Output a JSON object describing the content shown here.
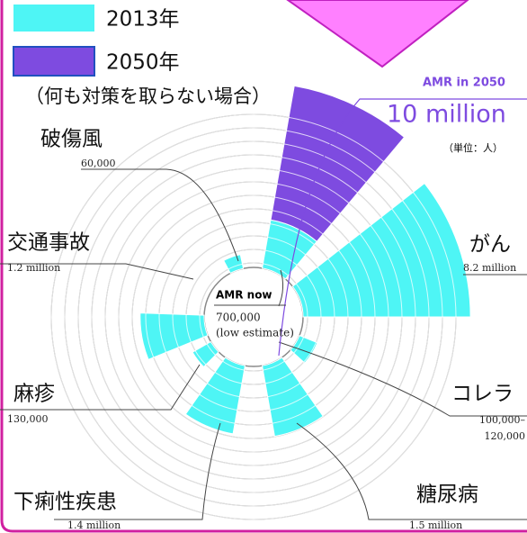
{
  "chart_data": {
    "type": "rose",
    "legend": [
      {
        "name": "2013年",
        "color": "#4ef5f5"
      },
      {
        "name": "2050年",
        "color": "#7e4be0"
      }
    ],
    "subtitle": "（何も対策を取らない場合）",
    "unit_note": "（単位：人）",
    "center_note": "(low estimate)",
    "sectors": [
      {
        "label": "AMR now",
        "value": 700000,
        "value_label": "700,000",
        "series": 0
      },
      {
        "label": "AMR in 2050",
        "value": 10000000,
        "value_label": "10 million",
        "series": 1
      },
      {
        "label": "がん",
        "value": 8200000,
        "value_label": "8.2 million",
        "series": 0
      },
      {
        "label": "コレラ",
        "value": 110000,
        "value_label": "100,000–120,000",
        "series": 0
      },
      {
        "label": "糖尿病",
        "value": 1500000,
        "value_label": "1.5 million",
        "series": 0
      },
      {
        "label": "下痢性疾患",
        "value": 1400000,
        "value_label": "1.4 million",
        "series": 0
      },
      {
        "label": "麻疹",
        "value": 130000,
        "value_label": "130,000",
        "series": 0
      },
      {
        "label": "交通事故",
        "value": 1200000,
        "value_label": "1.2 million",
        "series": 0
      },
      {
        "label": "破傷風",
        "value": 60000,
        "value_label": "60,000",
        "series": 0
      }
    ]
  }
}
